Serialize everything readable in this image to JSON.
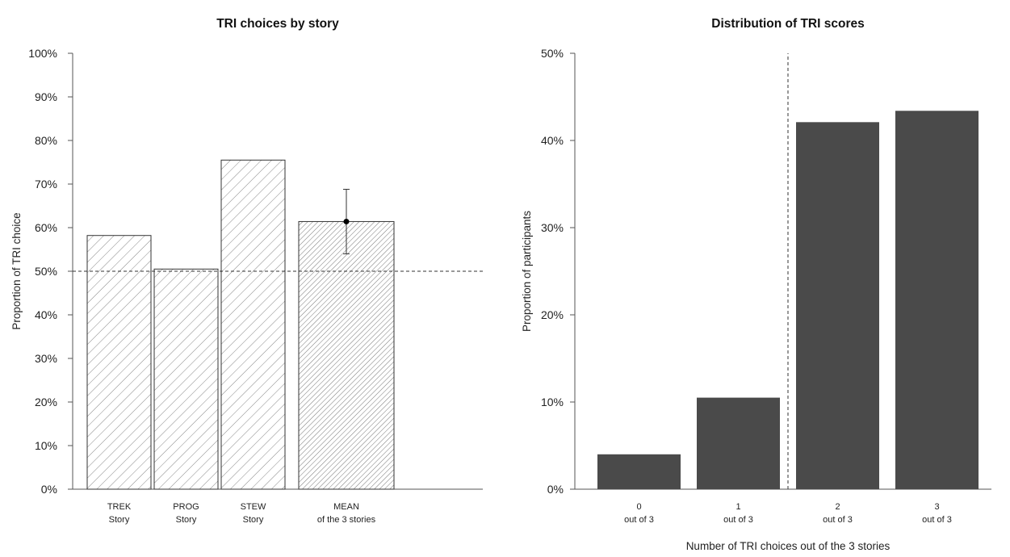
{
  "chart_data": [
    {
      "type": "bar",
      "title": "TRI choices by story",
      "ylabel": "Proportion of TRI choice",
      "xlabel": "",
      "ylim": [
        0,
        100
      ],
      "yticks": [
        "0%",
        "10%",
        "20%",
        "30%",
        "40%",
        "50%",
        "60%",
        "70%",
        "80%",
        "90%",
        "100%"
      ],
      "categories": [
        {
          "line1": "TREK",
          "line2": "Story"
        },
        {
          "line1": "PROG",
          "line2": "Story"
        },
        {
          "line1": "STEW",
          "line2": "Story"
        },
        {
          "line1": "MEAN",
          "line2": "of the 3 stories"
        }
      ],
      "values": [
        58.2,
        50.5,
        75.5,
        61.4
      ],
      "mean_error_bar": {
        "point": 61.4,
        "low": 54.0,
        "high": 68.8
      },
      "reference_line": 50,
      "fill": "hatched",
      "grid": false
    },
    {
      "type": "bar",
      "title": "Distribution of TRI scores",
      "ylabel": "Proportion of participants",
      "xlabel": "Number of TRI choices out of the 3 stories",
      "ylim": [
        0,
        50
      ],
      "yticks": [
        "0%",
        "10%",
        "20%",
        "30%",
        "40%",
        "50%"
      ],
      "categories": [
        {
          "line1": "0",
          "line2": "out of 3"
        },
        {
          "line1": "1",
          "line2": "out of 3"
        },
        {
          "line1": "2",
          "line2": "out of 3"
        },
        {
          "line1": "3",
          "line2": "out of 3"
        }
      ],
      "values": [
        4.0,
        10.5,
        42.1,
        43.4
      ],
      "reference_divider_between": [
        1,
        2
      ],
      "bar_color": "#4a4a4a",
      "grid": false
    }
  ]
}
